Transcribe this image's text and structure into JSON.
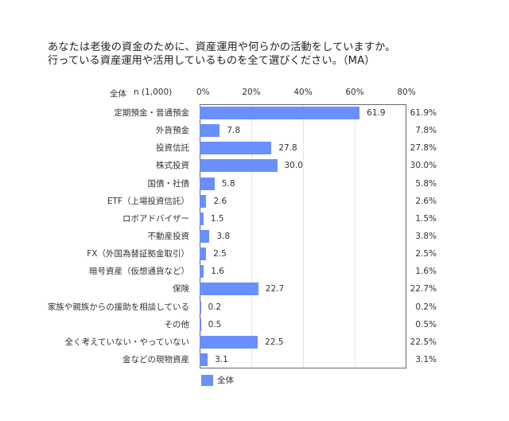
{
  "title": {
    "line1": "あなたは老後の資金のために、資産運用や何らかの活動をしていますか。",
    "line2": "行っている資産運用や活用しているものを全て選びください。（MA）"
  },
  "header": {
    "group_label": "全体",
    "n_label": "n (1,000)"
  },
  "colors": {
    "bar": "#6a8fff",
    "frame": "#666666",
    "grid": "#e4e4e4"
  },
  "chart_data": {
    "type": "bar",
    "orientation": "horizontal",
    "title": "あなたは老後の資金のために、資産運用や何らかの活動をしていますか。行っている資産運用や活用しているものを全て選びください。（MA）",
    "xlabel": "",
    "ylabel": "",
    "xlim": [
      0,
      80
    ],
    "xticks": [
      "0%",
      "20%",
      "40%",
      "60%",
      "80%"
    ],
    "grid": true,
    "legend_position": "bottom-left",
    "categories": [
      "定期預金・普通預金",
      "外貨預金",
      "投資信託",
      "株式投資",
      "国債・社債",
      "ETF（上場投資信託）",
      "ロボアドバイザー",
      "不動産投資",
      "FX（外国為替証拠金取引）",
      "暗号資産（仮想通貨など）",
      "保険",
      "家族や親族からの援助を相談している",
      "その他",
      "全く考えていない・やっていない",
      "金などの現物資産"
    ],
    "series": [
      {
        "name": "全体",
        "n": "1,000",
        "values": [
          61.9,
          7.8,
          27.8,
          30.0,
          5.8,
          2.6,
          1.5,
          3.8,
          2.5,
          1.6,
          22.7,
          0.2,
          0.5,
          22.5,
          3.1
        ]
      }
    ],
    "value_labels": [
      "61.9",
      "7.8",
      "27.8",
      "30.0",
      "5.8",
      "2.6",
      "1.5",
      "3.8",
      "2.5",
      "1.6",
      "22.7",
      "0.2",
      "0.5",
      "22.5",
      "3.1"
    ],
    "right_labels": [
      "61.9%",
      "7.8%",
      "27.8%",
      "30.0%",
      "5.8%",
      "2.6%",
      "1.5%",
      "3.8%",
      "2.5%",
      "1.6%",
      "22.7%",
      "0.2%",
      "0.5%",
      "22.5%",
      "3.1%"
    ]
  },
  "legend": {
    "items": [
      {
        "label": "全体"
      }
    ]
  }
}
